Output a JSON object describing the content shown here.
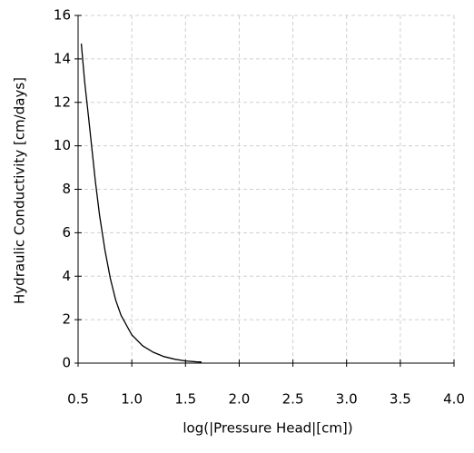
{
  "chart_data": {
    "type": "line",
    "x_label": "log(|Pressure Head|[cm])",
    "y_label": "Hydraulic Conductivity [cm/days]",
    "x": [
      0.53,
      0.56,
      0.6,
      0.63,
      0.66,
      0.7,
      0.75,
      0.8,
      0.85,
      0.9,
      1.0,
      1.1,
      1.2,
      1.3,
      1.4,
      1.5,
      1.6,
      1.65
    ],
    "series": [
      {
        "color": "#000000",
        "values": [
          14.7,
          13.0,
          11.2,
          9.8,
          8.4,
          6.8,
          5.2,
          3.9,
          2.9,
          2.2,
          1.3,
          0.8,
          0.5,
          0.3,
          0.18,
          0.1,
          0.06,
          0.05
        ]
      }
    ],
    "xlim": [
      0.5,
      4.0
    ],
    "xticks": [
      0.5,
      {
        "value": 1,
        "label": "1.0"
      },
      1.5,
      {
        "value": 2,
        "label": "2.0"
      },
      2.5,
      {
        "value": 3,
        "label": "3.0"
      },
      3.5,
      {
        "value": 4,
        "label": "4.0"
      }
    ],
    "ylim": [
      0,
      16
    ],
    "yticks": [
      0,
      2,
      4,
      6,
      8,
      10,
      12,
      14,
      16
    ],
    "grid": true
  }
}
